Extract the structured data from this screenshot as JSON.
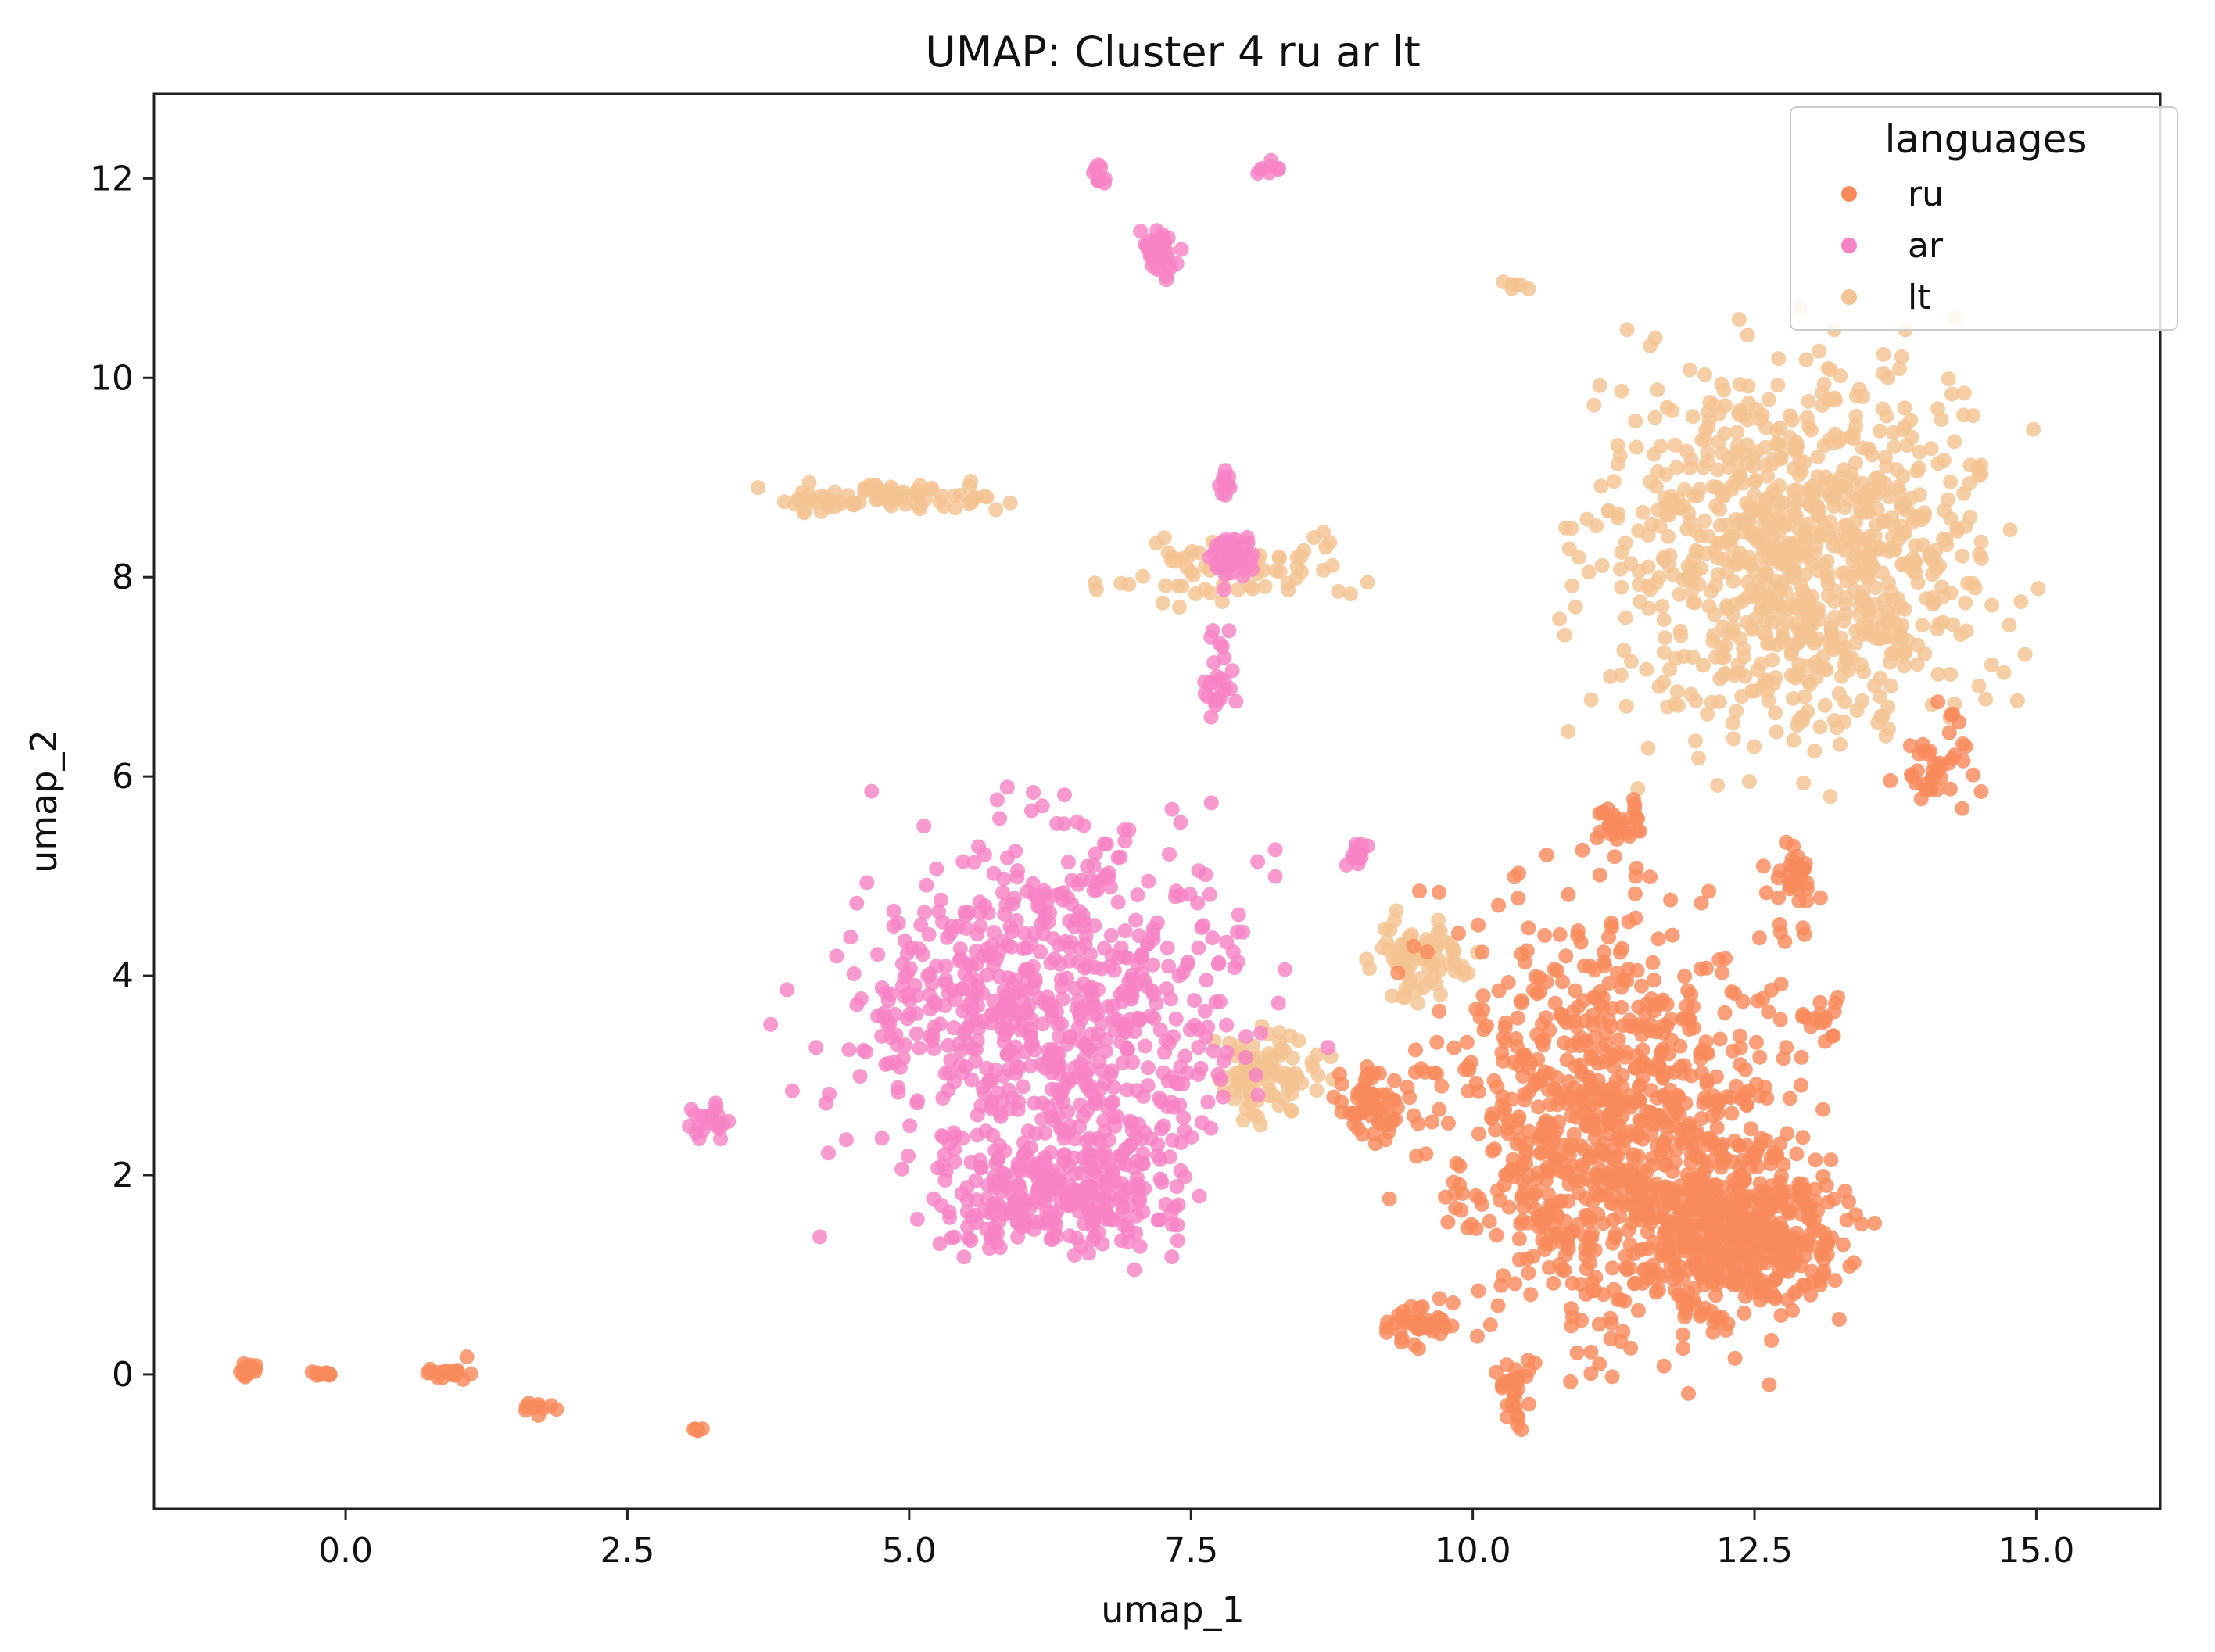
{
  "chart_data": {
    "type": "scatter",
    "title": "UMAP: Cluster 4 ru ar lt",
    "xlabel": "umap_1",
    "ylabel": "umap_2",
    "xlim": [
      -1.7,
      16.1
    ],
    "ylim": [
      -1.35,
      12.85
    ],
    "xticks": [
      0.0,
      2.5,
      5.0,
      7.5,
      10.0,
      12.5,
      15.0
    ],
    "xtick_labels": [
      "0.0",
      "2.5",
      "5.0",
      "7.5",
      "10.0",
      "12.5",
      "15.0"
    ],
    "yticks": [
      0,
      2,
      4,
      6,
      8,
      10,
      12
    ],
    "ytick_labels": [
      "0",
      "2",
      "4",
      "6",
      "8",
      "10",
      "12"
    ],
    "grid": false,
    "legend": {
      "title": "languages",
      "placement": "top-right"
    },
    "series": [
      {
        "name": "ru",
        "color": "#f98a5c",
        "clusters": [
          {
            "x": [
              9.0,
              13.6
            ],
            "y": [
              -0.6,
              5.6
            ],
            "n": 900
          },
          {
            "x": [
              11.2,
              13.6
            ],
            "y": [
              0.2,
              2.6
            ],
            "n": 420
          },
          {
            "x": [
              11.0,
              11.6
            ],
            "y": [
              5.3,
              5.8
            ],
            "n": 30
          },
          {
            "x": [
              12.5,
              13.2
            ],
            "y": [
              4.5,
              5.5
            ],
            "n": 30
          },
          {
            "x": [
              13.6,
              14.7
            ],
            "y": [
              5.3,
              6.8
            ],
            "n": 40
          },
          {
            "x": [
              9.1,
              9.9
            ],
            "y": [
              0.2,
              0.8
            ],
            "n": 40
          },
          {
            "x": [
              10.1,
              10.6
            ],
            "y": [
              -0.7,
              0.4
            ],
            "n": 30
          },
          {
            "x": [
              12.8,
              13.4
            ],
            "y": [
              3.1,
              3.9
            ],
            "n": 15
          },
          {
            "x": [
              8.6,
              9.6
            ],
            "y": [
              2.2,
              3.2
            ],
            "n": 60
          },
          {
            "x": [
              -0.95,
              -0.75
            ],
            "y": [
              -0.1,
              0.2
            ],
            "n": 20
          },
          {
            "x": [
              -0.4,
              0.0
            ],
            "y": [
              -0.05,
              0.05
            ],
            "n": 10
          },
          {
            "x": [
              0.6,
              1.3
            ],
            "y": [
              -0.15,
              0.2
            ],
            "n": 18
          },
          {
            "x": [
              1.5,
              1.9
            ],
            "y": [
              -0.45,
              -0.25
            ],
            "n": 10
          },
          {
            "x": [
              3.05,
              3.2
            ],
            "y": [
              -0.6,
              -0.5
            ],
            "n": 5
          }
        ]
      },
      {
        "name": "ar",
        "color": "#f783c4",
        "clusters": [
          {
            "x": [
              3.6,
              8.8
            ],
            "y": [
              0.9,
              6.3
            ],
            "n": 720
          },
          {
            "x": [
              5.0,
              7.8
            ],
            "y": [
              0.9,
              2.8
            ],
            "n": 260
          },
          {
            "x": [
              3.0,
              3.5
            ],
            "y": [
              2.3,
              2.8
            ],
            "n": 20
          },
          {
            "x": [
              7.55,
              8.15
            ],
            "y": [
              7.8,
              8.6
            ],
            "n": 40
          },
          {
            "x": [
              7.7,
              7.9
            ],
            "y": [
              8.6,
              9.2
            ],
            "n": 12
          },
          {
            "x": [
              7.5,
              7.95
            ],
            "y": [
              6.3,
              7.6
            ],
            "n": 25
          },
          {
            "x": [
              6.95,
              7.45
            ],
            "y": [
              10.9,
              11.6
            ],
            "n": 40
          },
          {
            "x": [
              6.5,
              6.9
            ],
            "y": [
              11.8,
              12.2
            ],
            "n": 10
          },
          {
            "x": [
              8.0,
              8.35
            ],
            "y": [
              12.0,
              12.2
            ],
            "n": 8
          },
          {
            "x": [
              8.8,
              9.1
            ],
            "y": [
              4.9,
              5.6
            ],
            "n": 15
          }
        ]
      },
      {
        "name": "lt",
        "color": "#f4c393",
        "clusters": [
          {
            "x": [
              10.3,
              15.4
            ],
            "y": [
              5.5,
              11.1
            ],
            "n": 900
          },
          {
            "x": [
              3.3,
              6.3
            ],
            "y": [
              8.6,
              9.0
            ],
            "n": 80
          },
          {
            "x": [
              6.3,
              9.6
            ],
            "y": [
              7.5,
              8.6
            ],
            "n": 70
          },
          {
            "x": [
              7.5,
              8.9
            ],
            "y": [
              2.4,
              3.7
            ],
            "n": 90
          },
          {
            "x": [
              8.9,
              10.2
            ],
            "y": [
              3.6,
              4.8
            ],
            "n": 70
          },
          {
            "x": [
              10.2,
              10.6
            ],
            "y": [
              10.8,
              11.0
            ],
            "n": 6
          }
        ]
      }
    ]
  }
}
